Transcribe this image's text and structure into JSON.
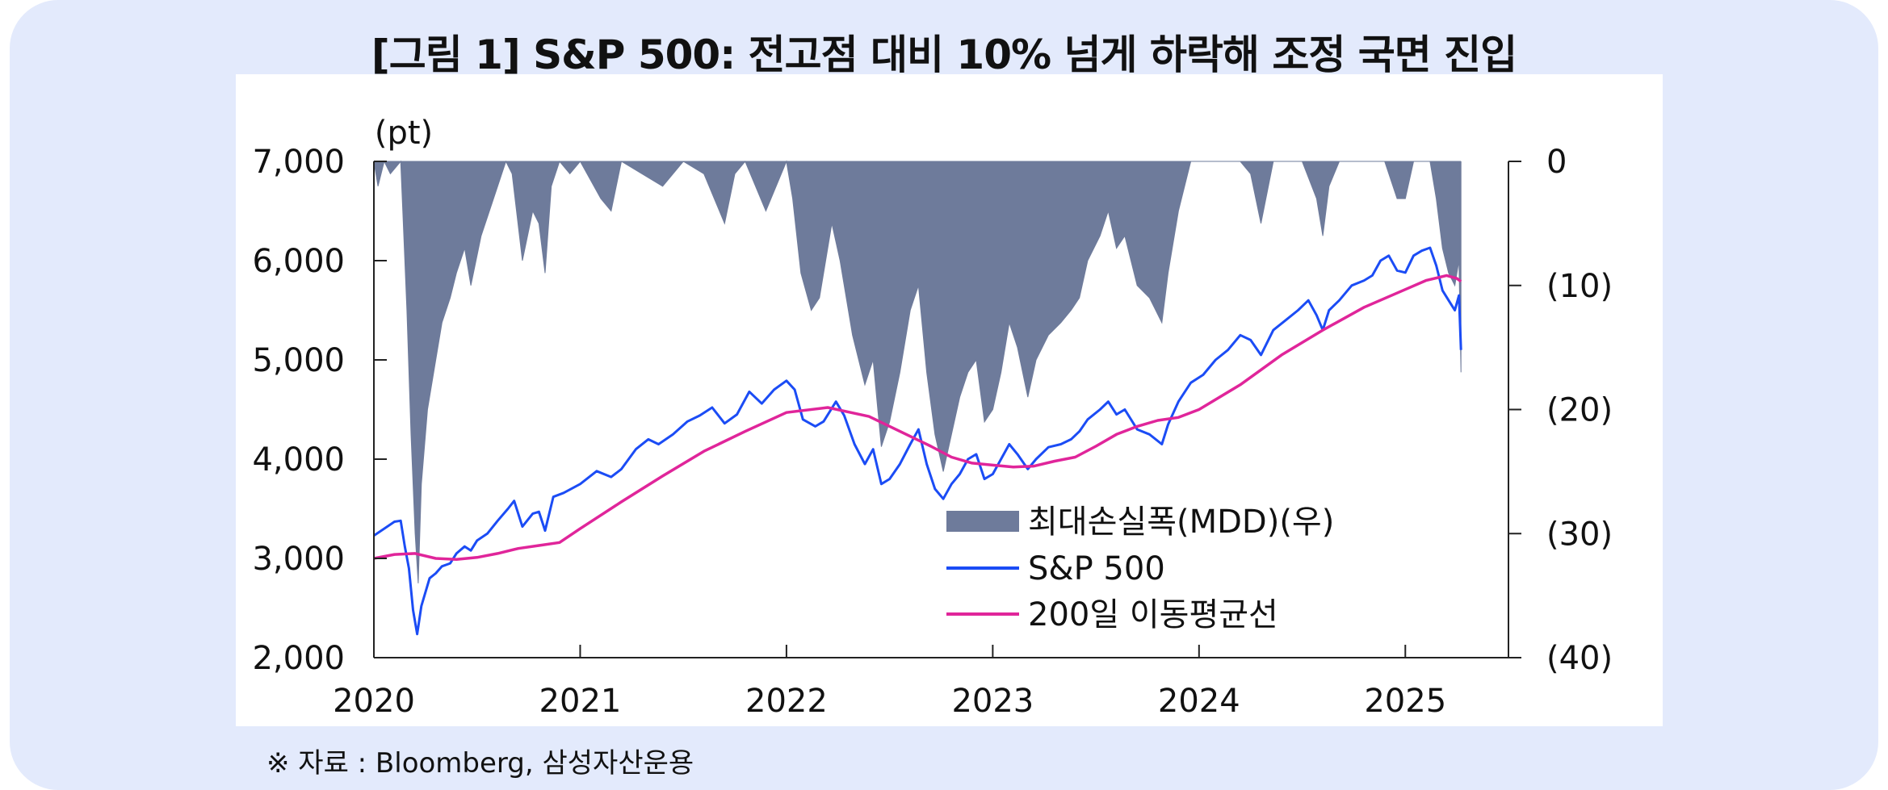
{
  "title": "[그림 1] S&P 500: 전고점 대비 10% 넘게 하락해 조정 국면 진입",
  "source": "※ 자료 : Bloomberg, 삼성자산운용",
  "colors": {
    "mdd": "#6e7b9b",
    "sp500": "#1b4cf5",
    "ma200": "#e0259a",
    "panel": "#e3eafc"
  },
  "chart_data": {
    "type": "line",
    "left_unit_label": "(pt)",
    "left_axis": {
      "min": 2000,
      "max": 7000,
      "ticks": [
        "2,000",
        "3,000",
        "4,000",
        "5,000",
        "6,000",
        "7,000"
      ]
    },
    "right_axis": {
      "min": -40,
      "max": 0,
      "ticks": [
        "(40)",
        "(30)",
        "(20)",
        "(10)",
        "0"
      ],
      "inverted": true
    },
    "x_axis": {
      "min": 2020.0,
      "max": 2025.5,
      "ticks": [
        "2020",
        "2021",
        "2022",
        "2023",
        "2024",
        "2025"
      ]
    },
    "legend": {
      "position": "bottom-right",
      "entries": [
        "최대손실폭(MDD)(우)",
        "S&P 500",
        "200일 이동평균선"
      ]
    },
    "series": [
      {
        "name": "S&P 500",
        "kind": "line",
        "axis": "left",
        "points": [
          [
            2020.0,
            3230
          ],
          [
            2020.05,
            3300
          ],
          [
            2020.1,
            3370
          ],
          [
            2020.13,
            3380
          ],
          [
            2020.15,
            3120
          ],
          [
            2020.17,
            2900
          ],
          [
            2020.19,
            2480
          ],
          [
            2020.21,
            2237
          ],
          [
            2020.23,
            2520
          ],
          [
            2020.27,
            2800
          ],
          [
            2020.3,
            2850
          ],
          [
            2020.33,
            2920
          ],
          [
            2020.37,
            2950
          ],
          [
            2020.4,
            3050
          ],
          [
            2020.44,
            3120
          ],
          [
            2020.47,
            3080
          ],
          [
            2020.5,
            3180
          ],
          [
            2020.55,
            3250
          ],
          [
            2020.6,
            3380
          ],
          [
            2020.65,
            3500
          ],
          [
            2020.68,
            3580
          ],
          [
            2020.72,
            3320
          ],
          [
            2020.77,
            3450
          ],
          [
            2020.8,
            3470
          ],
          [
            2020.83,
            3280
          ],
          [
            2020.87,
            3620
          ],
          [
            2020.92,
            3660
          ],
          [
            2021.0,
            3750
          ],
          [
            2021.08,
            3880
          ],
          [
            2021.15,
            3820
          ],
          [
            2021.2,
            3900
          ],
          [
            2021.27,
            4100
          ],
          [
            2021.33,
            4200
          ],
          [
            2021.38,
            4150
          ],
          [
            2021.45,
            4250
          ],
          [
            2021.52,
            4380
          ],
          [
            2021.58,
            4440
          ],
          [
            2021.64,
            4520
          ],
          [
            2021.7,
            4360
          ],
          [
            2021.76,
            4450
          ],
          [
            2021.82,
            4680
          ],
          [
            2021.88,
            4560
          ],
          [
            2021.94,
            4700
          ],
          [
            2022.0,
            4790
          ],
          [
            2022.04,
            4700
          ],
          [
            2022.08,
            4400
          ],
          [
            2022.14,
            4330
          ],
          [
            2022.18,
            4380
          ],
          [
            2022.24,
            4580
          ],
          [
            2022.28,
            4440
          ],
          [
            2022.33,
            4150
          ],
          [
            2022.38,
            3950
          ],
          [
            2022.42,
            4100
          ],
          [
            2022.46,
            3750
          ],
          [
            2022.5,
            3800
          ],
          [
            2022.55,
            3950
          ],
          [
            2022.6,
            4150
          ],
          [
            2022.64,
            4300
          ],
          [
            2022.68,
            3950
          ],
          [
            2022.72,
            3700
          ],
          [
            2022.76,
            3600
          ],
          [
            2022.8,
            3750
          ],
          [
            2022.84,
            3850
          ],
          [
            2022.88,
            4000
          ],
          [
            2022.92,
            4050
          ],
          [
            2022.96,
            3800
          ],
          [
            2023.0,
            3850
          ],
          [
            2023.04,
            4000
          ],
          [
            2023.08,
            4150
          ],
          [
            2023.12,
            4050
          ],
          [
            2023.17,
            3900
          ],
          [
            2023.21,
            4000
          ],
          [
            2023.27,
            4120
          ],
          [
            2023.33,
            4150
          ],
          [
            2023.38,
            4200
          ],
          [
            2023.42,
            4280
          ],
          [
            2023.46,
            4400
          ],
          [
            2023.52,
            4500
          ],
          [
            2023.56,
            4580
          ],
          [
            2023.6,
            4450
          ],
          [
            2023.64,
            4500
          ],
          [
            2023.7,
            4300
          ],
          [
            2023.76,
            4250
          ],
          [
            2023.82,
            4150
          ],
          [
            2023.85,
            4350
          ],
          [
            2023.9,
            4580
          ],
          [
            2023.96,
            4770
          ],
          [
            2024.02,
            4850
          ],
          [
            2024.08,
            5000
          ],
          [
            2024.14,
            5100
          ],
          [
            2024.2,
            5250
          ],
          [
            2024.25,
            5200
          ],
          [
            2024.3,
            5050
          ],
          [
            2024.36,
            5300
          ],
          [
            2024.42,
            5400
          ],
          [
            2024.48,
            5500
          ],
          [
            2024.53,
            5600
          ],
          [
            2024.57,
            5450
          ],
          [
            2024.6,
            5300
          ],
          [
            2024.63,
            5500
          ],
          [
            2024.68,
            5600
          ],
          [
            2024.74,
            5750
          ],
          [
            2024.8,
            5800
          ],
          [
            2024.84,
            5850
          ],
          [
            2024.88,
            6000
          ],
          [
            2024.92,
            6050
          ],
          [
            2024.96,
            5900
          ],
          [
            2025.0,
            5880
          ],
          [
            2025.04,
            6050
          ],
          [
            2025.08,
            6100
          ],
          [
            2025.12,
            6130
          ],
          [
            2025.15,
            5950
          ],
          [
            2025.18,
            5700
          ],
          [
            2025.21,
            5600
          ],
          [
            2025.24,
            5500
          ],
          [
            2025.26,
            5650
          ],
          [
            2025.27,
            5100
          ]
        ]
      },
      {
        "name": "200일 이동평균선",
        "kind": "line",
        "axis": "left",
        "points": [
          [
            2020.0,
            3000
          ],
          [
            2020.1,
            3040
          ],
          [
            2020.2,
            3050
          ],
          [
            2020.3,
            3000
          ],
          [
            2020.4,
            2990
          ],
          [
            2020.5,
            3010
          ],
          [
            2020.6,
            3050
          ],
          [
            2020.7,
            3100
          ],
          [
            2020.8,
            3130
          ],
          [
            2020.9,
            3160
          ],
          [
            2021.0,
            3300
          ],
          [
            2021.2,
            3570
          ],
          [
            2021.4,
            3830
          ],
          [
            2021.6,
            4080
          ],
          [
            2021.8,
            4280
          ],
          [
            2022.0,
            4470
          ],
          [
            2022.2,
            4520
          ],
          [
            2022.4,
            4430
          ],
          [
            2022.6,
            4230
          ],
          [
            2022.7,
            4130
          ],
          [
            2022.8,
            4020
          ],
          [
            2022.9,
            3960
          ],
          [
            2023.0,
            3940
          ],
          [
            2023.1,
            3920
          ],
          [
            2023.2,
            3930
          ],
          [
            2023.3,
            3980
          ],
          [
            2023.4,
            4020
          ],
          [
            2023.5,
            4130
          ],
          [
            2023.6,
            4250
          ],
          [
            2023.7,
            4330
          ],
          [
            2023.8,
            4390
          ],
          [
            2023.9,
            4420
          ],
          [
            2024.0,
            4500
          ],
          [
            2024.2,
            4750
          ],
          [
            2024.4,
            5050
          ],
          [
            2024.6,
            5300
          ],
          [
            2024.8,
            5530
          ],
          [
            2025.0,
            5710
          ],
          [
            2025.1,
            5800
          ],
          [
            2025.2,
            5850
          ],
          [
            2025.25,
            5820
          ],
          [
            2025.27,
            5790
          ]
        ]
      },
      {
        "name": "최대손실폭(MDD)(우)",
        "kind": "area",
        "axis": "right",
        "points": [
          [
            2020.0,
            0
          ],
          [
            2020.02,
            -2
          ],
          [
            2020.05,
            0
          ],
          [
            2020.08,
            -1
          ],
          [
            2020.13,
            0
          ],
          [
            2020.14,
            -4
          ],
          [
            2020.16,
            -12
          ],
          [
            2020.18,
            -22
          ],
          [
            2020.2,
            -30
          ],
          [
            2020.215,
            -34
          ],
          [
            2020.23,
            -26
          ],
          [
            2020.26,
            -20
          ],
          [
            2020.3,
            -16
          ],
          [
            2020.33,
            -13
          ],
          [
            2020.37,
            -11
          ],
          [
            2020.4,
            -9
          ],
          [
            2020.44,
            -7
          ],
          [
            2020.47,
            -10
          ],
          [
            2020.52,
            -6
          ],
          [
            2020.58,
            -3
          ],
          [
            2020.64,
            0
          ],
          [
            2020.67,
            -1
          ],
          [
            2020.72,
            -8
          ],
          [
            2020.77,
            -4
          ],
          [
            2020.8,
            -5
          ],
          [
            2020.83,
            -9
          ],
          [
            2020.86,
            -2
          ],
          [
            2020.9,
            0
          ],
          [
            2020.95,
            -1
          ],
          [
            2021.0,
            0
          ],
          [
            2021.1,
            -3
          ],
          [
            2021.15,
            -4
          ],
          [
            2021.2,
            0
          ],
          [
            2021.3,
            -1
          ],
          [
            2021.4,
            -2
          ],
          [
            2021.5,
            0
          ],
          [
            2021.6,
            -1
          ],
          [
            2021.7,
            -5
          ],
          [
            2021.75,
            -1
          ],
          [
            2021.8,
            0
          ],
          [
            2021.9,
            -4
          ],
          [
            2022.0,
            0
          ],
          [
            2022.03,
            -3
          ],
          [
            2022.07,
            -9
          ],
          [
            2022.12,
            -12
          ],
          [
            2022.16,
            -11
          ],
          [
            2022.22,
            -5
          ],
          [
            2022.26,
            -8
          ],
          [
            2022.32,
            -14
          ],
          [
            2022.38,
            -18
          ],
          [
            2022.42,
            -16
          ],
          [
            2022.46,
            -23
          ],
          [
            2022.5,
            -21
          ],
          [
            2022.55,
            -17
          ],
          [
            2022.6,
            -12
          ],
          [
            2022.64,
            -10
          ],
          [
            2022.68,
            -17
          ],
          [
            2022.72,
            -22
          ],
          [
            2022.76,
            -25
          ],
          [
            2022.8,
            -22
          ],
          [
            2022.84,
            -19
          ],
          [
            2022.88,
            -17
          ],
          [
            2022.92,
            -16
          ],
          [
            2022.96,
            -21
          ],
          [
            2023.0,
            -20
          ],
          [
            2023.04,
            -17
          ],
          [
            2023.08,
            -13
          ],
          [
            2023.12,
            -15
          ],
          [
            2023.17,
            -19
          ],
          [
            2023.21,
            -16
          ],
          [
            2023.27,
            -14
          ],
          [
            2023.33,
            -13
          ],
          [
            2023.38,
            -12
          ],
          [
            2023.42,
            -11
          ],
          [
            2023.46,
            -8
          ],
          [
            2023.52,
            -6
          ],
          [
            2023.56,
            -4
          ],
          [
            2023.6,
            -7
          ],
          [
            2023.64,
            -6
          ],
          [
            2023.7,
            -10
          ],
          [
            2023.76,
            -11
          ],
          [
            2023.82,
            -13
          ],
          [
            2023.85,
            -9
          ],
          [
            2023.9,
            -4
          ],
          [
            2023.96,
            0
          ],
          [
            2024.02,
            0
          ],
          [
            2024.2,
            0
          ],
          [
            2024.25,
            -1
          ],
          [
            2024.3,
            -5
          ],
          [
            2024.36,
            0
          ],
          [
            2024.5,
            0
          ],
          [
            2024.57,
            -3
          ],
          [
            2024.6,
            -6
          ],
          [
            2024.63,
            -2
          ],
          [
            2024.68,
            0
          ],
          [
            2024.8,
            0
          ],
          [
            2024.9,
            0
          ],
          [
            2024.96,
            -3
          ],
          [
            2025.0,
            -3
          ],
          [
            2025.04,
            0
          ],
          [
            2025.12,
            0
          ],
          [
            2025.15,
            -3
          ],
          [
            2025.18,
            -7
          ],
          [
            2025.21,
            -9
          ],
          [
            2025.24,
            -10
          ],
          [
            2025.26,
            -8
          ],
          [
            2025.27,
            -17
          ],
          [
            2025.27,
            0
          ]
        ]
      }
    ]
  }
}
